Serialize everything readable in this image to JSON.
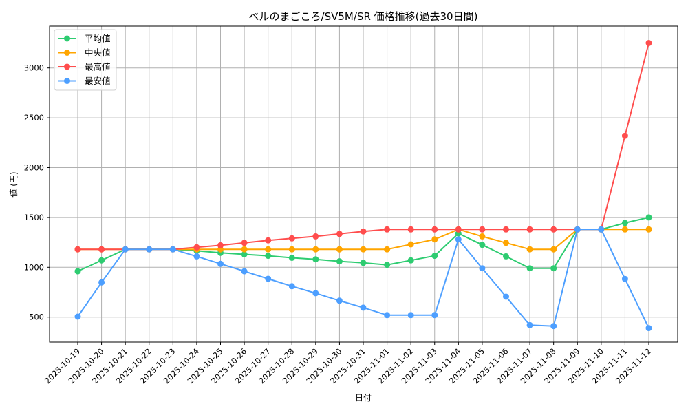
{
  "chart_data": {
    "type": "line",
    "title": "ベルのまごころ/SV5M/SR 価格推移(過去30日間)",
    "xlabel": "日付",
    "ylabel": "値 (円)",
    "ylim": [
      250,
      3400
    ],
    "yticks": [
      500,
      1000,
      1500,
      2000,
      2500,
      3000
    ],
    "grid": true,
    "legend_position": "upper left",
    "categories": [
      "2025-10-19",
      "2025-10-20",
      "2025-10-21",
      "2025-10-22",
      "2025-10-23",
      "2025-10-24",
      "2025-10-25",
      "2025-10-26",
      "2025-10-27",
      "2025-10-28",
      "2025-10-29",
      "2025-10-30",
      "2025-10-31",
      "2025-11-01",
      "2025-11-02",
      "2025-11-03",
      "2025-11-04",
      "2025-11-05",
      "2025-11-06",
      "2025-11-07",
      "2025-11-08",
      "2025-11-09",
      "2025-11-10",
      "2025-11-11",
      "2025-11-12"
    ],
    "series": [
      {
        "name": "平均値",
        "color": "#2ecc71",
        "values": [
          960,
          1070,
          1180,
          1180,
          1180,
          1165,
          1145,
          1130,
          1115,
          1095,
          1080,
          1060,
          1045,
          1025,
          1070,
          1115,
          1340,
          1225,
          1110,
          990,
          990,
          1380,
          1380,
          1445,
          1500
        ]
      },
      {
        "name": "中央値",
        "color": "#ffa500",
        "values": [
          1180,
          1180,
          1180,
          1180,
          1180,
          1180,
          1180,
          1180,
          1180,
          1180,
          1180,
          1180,
          1180,
          1180,
          1230,
          1280,
          1380,
          1310,
          1245,
          1180,
          1180,
          1380,
          1380,
          1380,
          1380
        ]
      },
      {
        "name": "最高値",
        "color": "#ff4d4d",
        "values": [
          1180,
          1180,
          1180,
          1180,
          1180,
          1200,
          1220,
          1245,
          1270,
          1290,
          1310,
          1335,
          1360,
          1380,
          1380,
          1380,
          1380,
          1380,
          1380,
          1380,
          1380,
          1380,
          1380,
          2320,
          3250
        ]
      },
      {
        "name": "最安値",
        "color": "#4d9fff",
        "values": [
          505,
          848,
          1180,
          1180,
          1180,
          1110,
          1035,
          960,
          885,
          810,
          740,
          665,
          595,
          520,
          520,
          520,
          1280,
          990,
          705,
          420,
          410,
          1380,
          1380,
          883,
          390
        ]
      }
    ]
  },
  "colors": {
    "grid": "#b0b0b0",
    "axis": "#000000",
    "background": "#ffffff"
  }
}
